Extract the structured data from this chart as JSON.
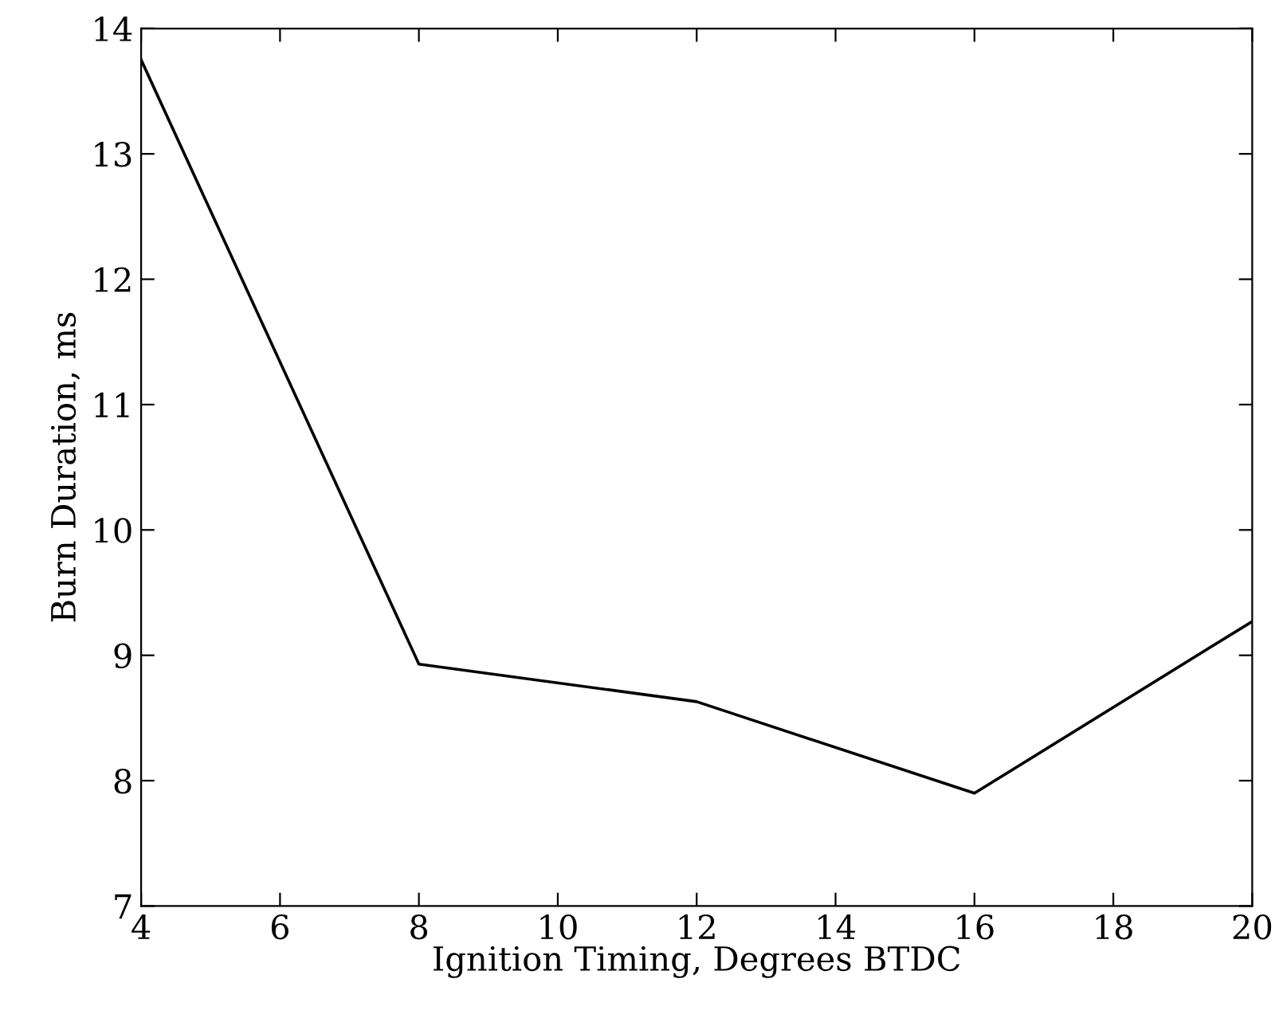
{
  "chart_data": {
    "type": "line",
    "xlabel": "Ignition Timing, Degrees BTDC",
    "ylabel": "Burn Duration, ms",
    "x": [
      4,
      8,
      12,
      16,
      20
    ],
    "series": [
      {
        "color": "#000000",
        "values": [
          13.75,
          8.93,
          8.63,
          7.9,
          9.27
        ]
      }
    ],
    "xlim": [
      4,
      20
    ],
    "ylim": [
      7,
      14
    ],
    "xticks": [
      4,
      6,
      8,
      10,
      12,
      14,
      16,
      18,
      20
    ],
    "yticks": [
      7,
      8,
      9,
      10,
      11,
      12,
      13,
      14
    ],
    "grid": false,
    "legend": false,
    "marker": "none",
    "line_style": "solid"
  }
}
